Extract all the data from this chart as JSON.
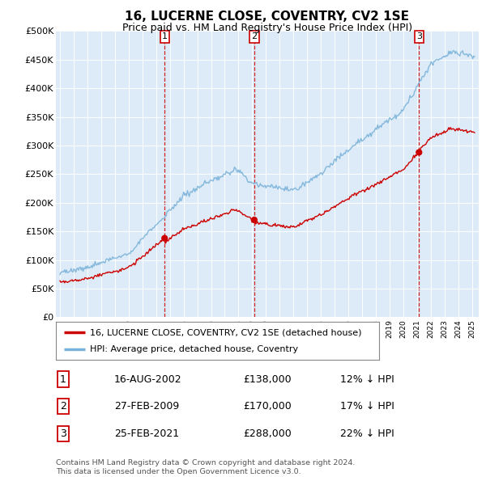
{
  "title": "16, LUCERNE CLOSE, COVENTRY, CV2 1SE",
  "subtitle": "Price paid vs. HM Land Registry's House Price Index (HPI)",
  "hpi_color": "#7ab3d9",
  "price_color": "#cc0000",
  "vline_color": "#cc0000",
  "background_color": "#ddeaf7",
  "ylim": [
    0,
    500000
  ],
  "yticks": [
    0,
    50000,
    100000,
    150000,
    200000,
    250000,
    300000,
    350000,
    400000,
    450000,
    500000
  ],
  "ytick_labels": [
    "£0",
    "£50K",
    "£100K",
    "£150K",
    "£200K",
    "£250K",
    "£300K",
    "£350K",
    "£400K",
    "£450K",
    "£500K"
  ],
  "legend_entry1": "16, LUCERNE CLOSE, COVENTRY, CV2 1SE (detached house)",
  "legend_entry2": "HPI: Average price, detached house, Coventry",
  "sale1_date": "16-AUG-2002",
  "sale1_price": "£138,000",
  "sale1_hpi": "12% ↓ HPI",
  "sale1_x": 2002.62,
  "sale1_y": 138000,
  "sale2_date": "27-FEB-2009",
  "sale2_price": "£170,000",
  "sale2_hpi": "17% ↓ HPI",
  "sale2_x": 2009.15,
  "sale2_y": 170000,
  "sale3_date": "25-FEB-2021",
  "sale3_price": "£288,000",
  "sale3_hpi": "22% ↓ HPI",
  "sale3_x": 2021.15,
  "sale3_y": 288000,
  "footer": "Contains HM Land Registry data © Crown copyright and database right 2024.\nThis data is licensed under the Open Government Licence v3.0.",
  "xlim_left": 1994.7,
  "xlim_right": 2025.5
}
